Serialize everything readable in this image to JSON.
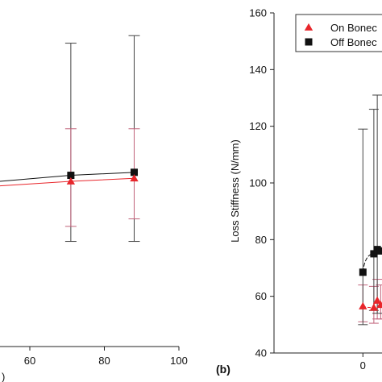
{
  "colors": {
    "on": "#e8262b",
    "off": "#111111",
    "err_on": "#c0627a",
    "err_off": "#444444"
  },
  "panel_b_label": "(b)",
  "chart_data": [
    {
      "panel": "a",
      "type": "line",
      "x_axis": {
        "ticks": [
          "60",
          "80",
          "100"
        ],
        "tick_values": [
          60,
          80,
          100
        ],
        "xlim": [
          52,
          100
        ],
        "fragment_label": ")"
      },
      "y_axis": {
        "visible": false
      },
      "series": [
        {
          "key": "off",
          "marker": "square",
          "points": [
            {
              "x": 52,
              "y": 110
            },
            {
              "x": 71,
              "y": 114
            },
            {
              "x": 88,
              "y": 116
            }
          ],
          "errors": [
            null,
            {
              "lo": 70,
              "hi": 202
            },
            {
              "lo": 70,
              "hi": 207
            }
          ]
        },
        {
          "key": "on",
          "marker": "triangle",
          "points": [
            {
              "x": 52,
              "y": 107
            },
            {
              "x": 71,
              "y": 110
            },
            {
              "x": 88,
              "y": 112
            }
          ],
          "errors": [
            null,
            {
              "lo": 80,
              "hi": 145
            },
            {
              "lo": 85,
              "hi": 145
            }
          ]
        }
      ]
    },
    {
      "panel": "b",
      "type": "line",
      "ylabel": "Loss Stiffness (N/mm)",
      "ylim": [
        40,
        160
      ],
      "y_ticks": [
        "40",
        "60",
        "80",
        "100",
        "120",
        "140",
        "160"
      ],
      "y_tick_values": [
        40,
        60,
        80,
        100,
        120,
        140,
        160
      ],
      "x_ticks": [
        "0"
      ],
      "x_tick_values": [
        0
      ],
      "xlim": [
        -13,
        3.5
      ],
      "legend": {
        "position": "top-right",
        "entries": [
          "On Bonec",
          "Off Bonec"
        ]
      },
      "series": [
        {
          "key": "on",
          "marker": "triangle",
          "points": [
            {
              "x": 0,
              "y": 56.5
            },
            {
              "x": 1.6,
              "y": 56
            },
            {
              "x": 2.1,
              "y": 58.5
            },
            {
              "x": 2.6,
              "y": 57
            }
          ],
          "errors": [
            {
              "lo": 51,
              "hi": 64
            },
            {
              "lo": 50.5,
              "hi": 63.5
            },
            {
              "lo": 52,
              "hi": 66
            },
            {
              "lo": 52,
              "hi": 64
            }
          ]
        },
        {
          "key": "off",
          "marker": "square",
          "points": [
            {
              "x": 0,
              "y": 68.5
            },
            {
              "x": 1.6,
              "y": 75
            },
            {
              "x": 2.1,
              "y": 76.5
            },
            {
              "x": 2.6,
              "y": 76
            }
          ],
          "errors": [
            {
              "lo": 50,
              "hi": 119
            },
            {
              "lo": 55,
              "hi": 126
            },
            {
              "lo": 54,
              "hi": 131
            },
            null
          ]
        }
      ]
    }
  ]
}
